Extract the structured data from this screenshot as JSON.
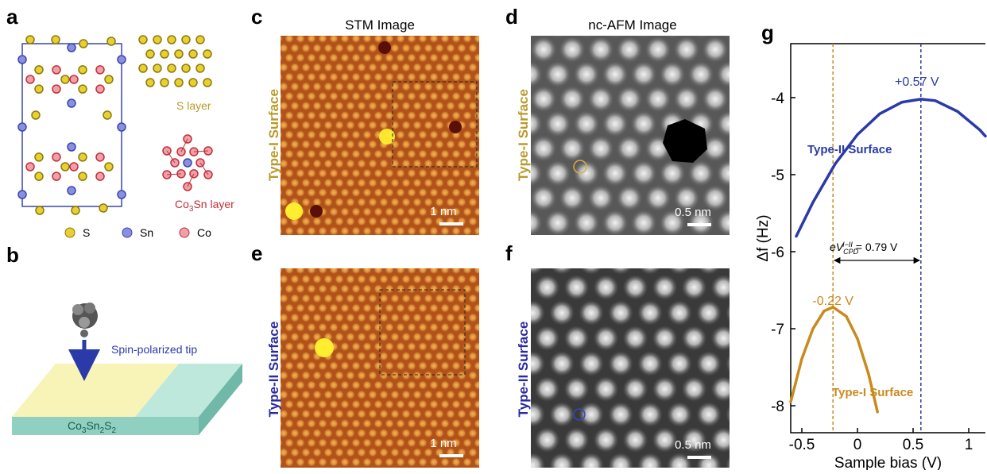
{
  "panels": {
    "a": {
      "label": "a",
      "s_layer": "S layer",
      "co3sn_layer": [
        "Co",
        "3",
        "Sn layer"
      ],
      "legend": [
        "S",
        "Sn",
        "Co"
      ]
    },
    "b": {
      "label": "b",
      "tip": "Spin-polarized tip",
      "material": [
        "Co",
        "3",
        "Sn",
        "2",
        "S",
        "2"
      ]
    },
    "c": {
      "label": "c",
      "title": "STM Image",
      "side": "Type-I Surface",
      "scale": "1 nm"
    },
    "d": {
      "label": "d",
      "title": "nc-AFM Image",
      "side": "Type-I Surface",
      "scale": "0.5 nm"
    },
    "e": {
      "label": "e",
      "side": "Type-II Surface",
      "scale": "1 nm"
    },
    "f": {
      "label": "f",
      "side": "Type-II Surface",
      "scale": "0.5 nm"
    },
    "g": {
      "label": "g"
    }
  },
  "chart_data": {
    "type": "line",
    "xlabel": "Sample bias (V)",
    "ylabel": "Δf (Hz)",
    "xlim": [
      -0.6,
      1.15
    ],
    "ylim": [
      -8.35,
      -3.3
    ],
    "xticks": [
      -0.5,
      0,
      0.5,
      1
    ],
    "yticks": [
      -8,
      -7,
      -6,
      -5,
      -4
    ],
    "series": [
      {
        "name": "Type-II Surface",
        "color": "#2a3aa8",
        "x": [
          -0.55,
          -0.4,
          -0.2,
          0,
          0.2,
          0.4,
          0.57,
          0.7,
          0.9,
          1.1,
          1.15
        ],
        "values": [
          -5.8,
          -5.36,
          -4.86,
          -4.48,
          -4.21,
          -4.06,
          -4.02,
          -4.04,
          -4.18,
          -4.42,
          -4.5
        ]
      },
      {
        "name": "Type-I Surface",
        "color": "#c98a1e",
        "x": [
          -0.6,
          -0.5,
          -0.4,
          -0.3,
          -0.22,
          -0.1,
          0,
          0.1,
          0.18
        ],
        "values": [
          -7.95,
          -7.39,
          -7.0,
          -6.77,
          -6.72,
          -6.84,
          -7.13,
          -7.59,
          -8.08
        ]
      }
    ],
    "vlines": [
      {
        "value": 0.57,
        "label": "+0.57 V",
        "color": "#2a3aa8"
      },
      {
        "value": -0.22,
        "label": "-0.22 V",
        "color": "#c98a1e"
      }
    ],
    "cpd_annotation": [
      "eV",
      "CPD",
      "I−II",
      " = 0.79 V"
    ]
  }
}
